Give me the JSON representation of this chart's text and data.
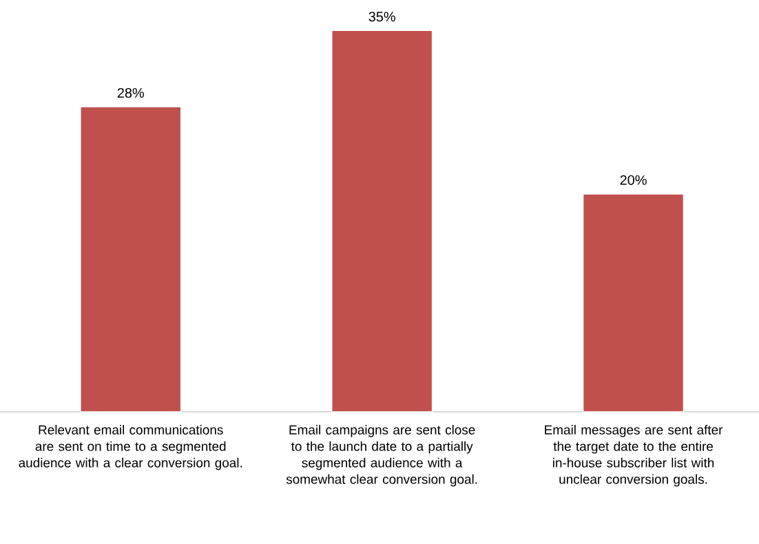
{
  "chart_data": {
    "type": "bar",
    "categories": [
      "Relevant email communications are sent on time to a segmented audience with a clear conversion goal.",
      "Email campaigns are sent close to the launch date to a partially segmented audience with a somewhat clear conversion goal.",
      "Email messages are sent after the target date to the entire in-house subscriber list with unclear conversion goals."
    ],
    "values": [
      28,
      35,
      20
    ],
    "value_labels": [
      "28%",
      "35%",
      "20%"
    ],
    "color": "#c0504d"
  }
}
